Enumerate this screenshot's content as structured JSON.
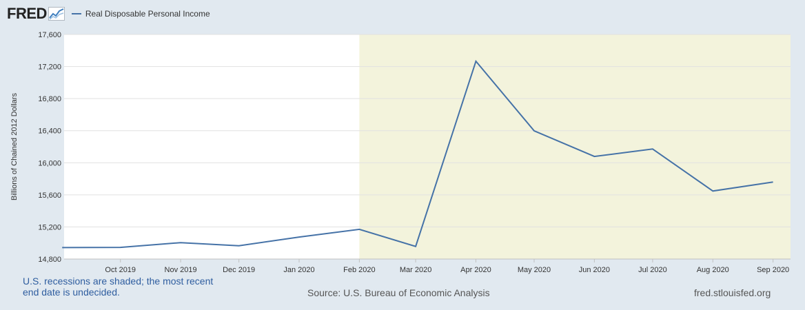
{
  "header": {
    "logo_text": "FRED",
    "logo_icon": "line-chart-icon"
  },
  "colors": {
    "series": "#4572a7",
    "recession": "#f3f3dc",
    "grid": "#e1e1e1",
    "note": "#2e5d9f",
    "background": "#e1e9f0"
  },
  "chart_data": {
    "type": "line",
    "title": "",
    "xlabel": "",
    "ylabel": "Billions of Chained 2012 Dollars",
    "ylim": [
      14800,
      17600
    ],
    "yticks": [
      14800,
      15200,
      15600,
      16000,
      16400,
      16800,
      17200,
      17600
    ],
    "ytick_labels": [
      "14,800",
      "15,200",
      "15,600",
      "16,000",
      "16,400",
      "16,800",
      "17,200",
      "17,600"
    ],
    "xlim": [
      "2019-09-02",
      "2020-09-10"
    ],
    "xticks": [
      "2019-10-01",
      "2019-11-01",
      "2019-12-01",
      "2020-01-01",
      "2020-02-01",
      "2020-03-01",
      "2020-04-01",
      "2020-05-01",
      "2020-06-01",
      "2020-07-01",
      "2020-08-01",
      "2020-09-01"
    ],
    "xtick_labels": [
      "Oct 2019",
      "Nov 2019",
      "Dec 2019",
      "Jan 2020",
      "Feb 2020",
      "Mar 2020",
      "Apr 2020",
      "May 2020",
      "Jun 2020",
      "Jul 2020",
      "Aug 2020",
      "Sep 2020"
    ],
    "grid": true,
    "recession": {
      "start": "2020-02-01",
      "end": "2020-09-10"
    },
    "series": [
      {
        "name": "Real Disposable Personal Income",
        "x": [
          "2019-09-01",
          "2019-10-01",
          "2019-11-01",
          "2019-12-01",
          "2020-01-01",
          "2020-02-01",
          "2020-03-01",
          "2020-04-01",
          "2020-05-01",
          "2020-06-01",
          "2020-07-01",
          "2020-08-01",
          "2020-09-01"
        ],
        "values": [
          14943,
          14945,
          15004,
          14966,
          15074,
          15170,
          14957,
          17266,
          16398,
          16079,
          16172,
          15648,
          15760
        ]
      }
    ]
  },
  "footer": {
    "recession_note": "U.S. recessions are shaded; the most recent end date is undecided.",
    "source": "Source: U.S. Bureau of Economic Analysis",
    "url": "fred.stlouisfed.org"
  }
}
